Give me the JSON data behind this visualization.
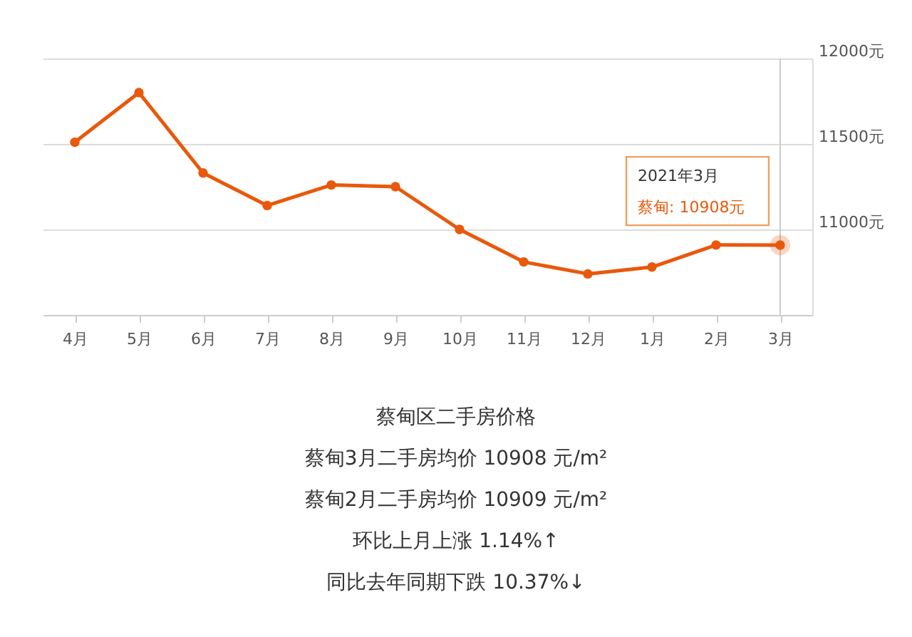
{
  "chart_data": {
    "type": "line",
    "categories": [
      "4月",
      "5月",
      "6月",
      "7月",
      "8月",
      "9月",
      "10月",
      "11月",
      "12月",
      "1月",
      "2月",
      "3月"
    ],
    "series": [
      {
        "color": "#e8590c",
        "values": [
          11510,
          11800,
          11330,
          11140,
          11260,
          11250,
          11000,
          10810,
          10740,
          10780,
          10909,
          10908
        ]
      }
    ],
    "ylim": [
      10500,
      12000
    ],
    "yticks": [
      {
        "value": 11000,
        "label": "11000元"
      },
      {
        "value": 11500,
        "label": "11500元"
      },
      {
        "value": 12000,
        "label": "12000元"
      }
    ],
    "grid": "y",
    "marker": "circle",
    "line_style": "solid",
    "ref_lines": [
      {
        "axis": "x",
        "value": "3月",
        "color": "#cccccc"
      }
    ],
    "annotations": [
      "2021年3月",
      {
        "text": "蔡甸:  10908元",
        "x": "3月",
        "y": 10908
      },
      "蔡甸区二手房价格",
      "蔡甸3月二手房均价 10908 元/m²",
      "蔡甸2月二手房均价 10909 元/m²",
      "环比上月上涨 1.14%↑",
      "同比去年同期下跌 10.37%↓"
    ]
  }
}
